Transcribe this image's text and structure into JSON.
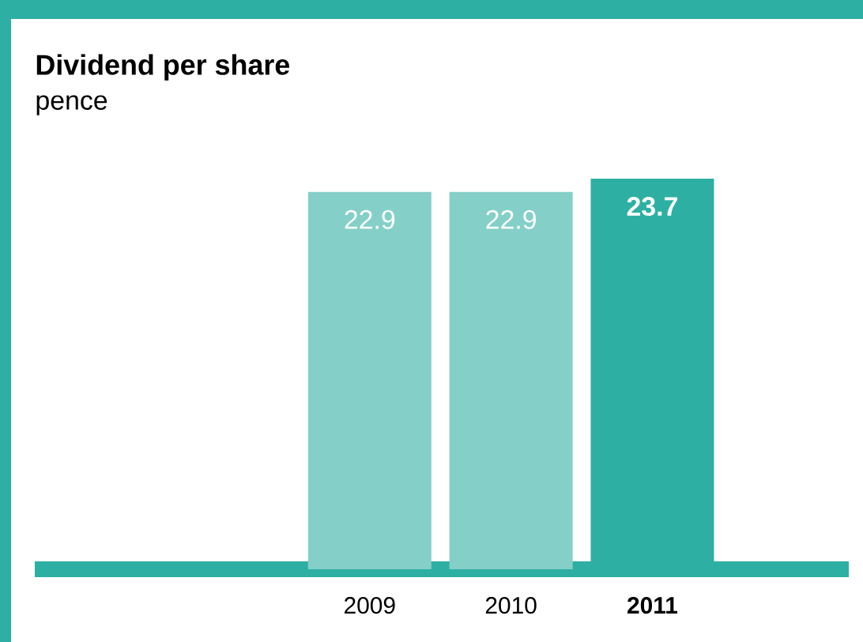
{
  "chart_data": {
    "type": "bar",
    "title": "Dividend per share",
    "subtitle": "pence",
    "categories": [
      "2009",
      "2010",
      "**2011**"
    ],
    "values": [
      22.9,
      22.9,
      23.7
    ],
    "value_labels": [
      "22.9",
      "22.9",
      "**23.7**"
    ],
    "colors": [
      "#84d0c8",
      "#84d0c8",
      "#2db0a3"
    ]
  }
}
